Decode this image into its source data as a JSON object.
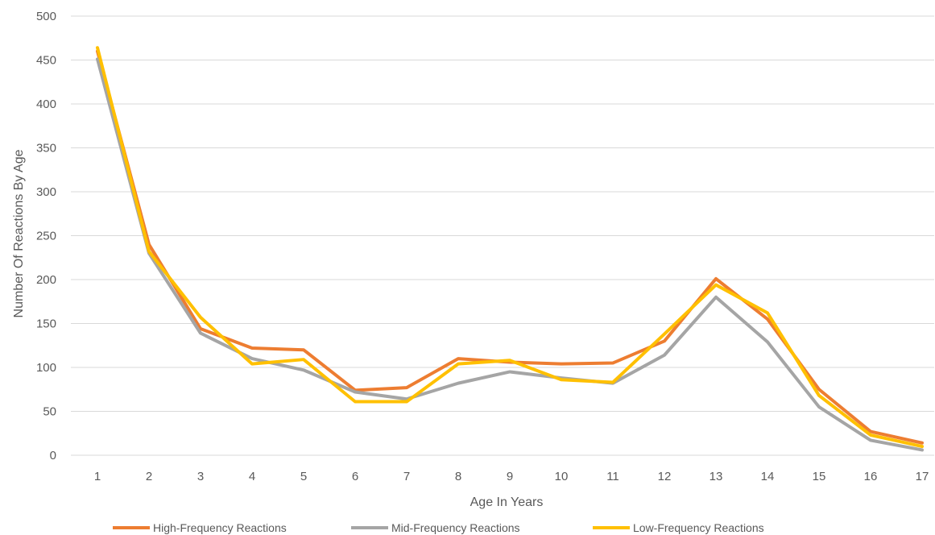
{
  "chart_data": {
    "type": "line",
    "title": "",
    "xlabel": "Age In Years",
    "ylabel": "Number Of Reactions By Age",
    "ylim": [
      0,
      500
    ],
    "yticks": [
      0,
      50,
      100,
      150,
      200,
      250,
      300,
      350,
      400,
      450,
      500
    ],
    "grid": true,
    "legend_position": "bottom",
    "x": [
      1,
      2,
      3,
      4,
      5,
      6,
      7,
      8,
      9,
      10,
      11,
      12,
      13,
      14,
      15,
      16,
      17
    ],
    "series": [
      {
        "name": "High-Frequency Reactions",
        "color": "#ED7D31",
        "values": [
          460,
          240,
          144,
          122,
          120,
          74,
          77,
          110,
          106,
          104,
          105,
          130,
          201,
          155,
          75,
          27,
          14
        ]
      },
      {
        "name": "Mid-Frequency Reactions",
        "color": "#A5A5A5",
        "values": [
          451,
          230,
          139,
          110,
          97,
          72,
          64,
          82,
          95,
          88,
          82,
          114,
          180,
          129,
          55,
          17,
          6
        ]
      },
      {
        "name": "Low-Frequency Reactions",
        "color": "#FFC000",
        "values": [
          464,
          232,
          157,
          104,
          109,
          61,
          61,
          104,
          108,
          86,
          83,
          138,
          194,
          162,
          68,
          23,
          10
        ]
      }
    ]
  }
}
